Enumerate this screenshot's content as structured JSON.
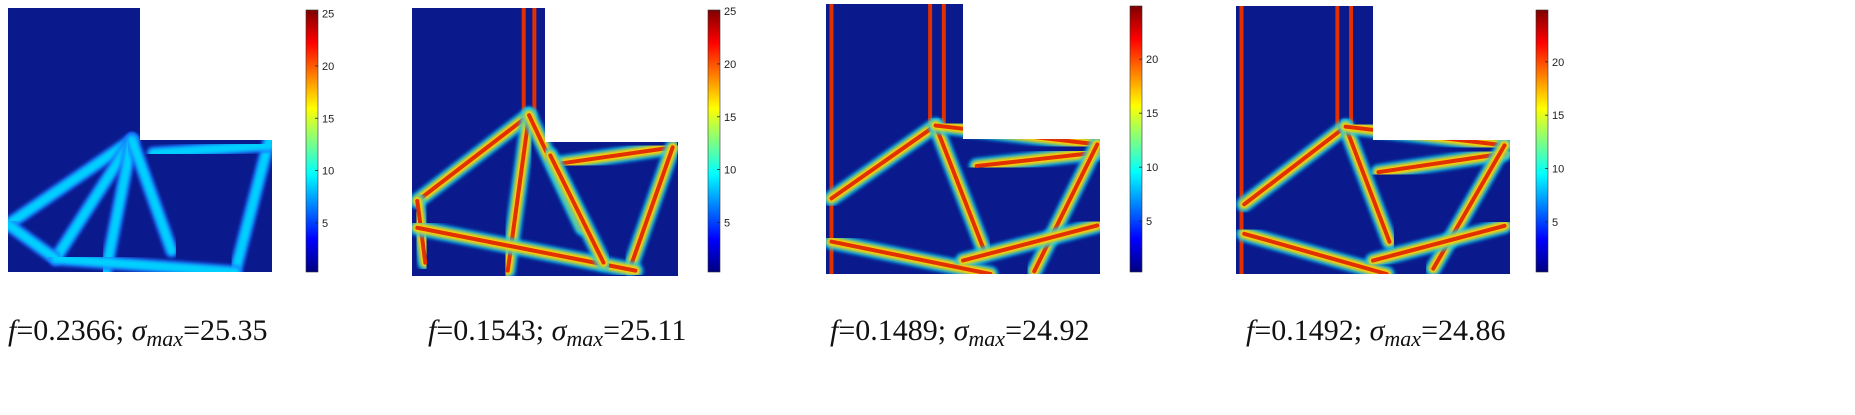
{
  "panels": [
    {
      "variant": "low",
      "colorbar": {
        "ticks": [
          5,
          10,
          15,
          20,
          25
        ],
        "min": 0.3,
        "max": 25.35
      },
      "caption": {
        "f_sym": "f",
        "f_val": "=0.2366; ",
        "sigma_sym": "σ",
        "sigma_sub": "max",
        "sigma_val": "=25.35"
      }
    },
    {
      "variant": "mid",
      "colorbar": {
        "ticks": [
          5,
          10,
          15,
          20,
          25
        ],
        "min": 0.3,
        "max": 25.11
      },
      "caption": {
        "f_sym": "f",
        "f_val": "=0.1543; ",
        "sigma_sym": "σ",
        "sigma_sub": "max",
        "sigma_val": "=25.11"
      }
    },
    {
      "variant": "high",
      "colorbar": {
        "ticks": [
          5,
          10,
          15,
          20
        ],
        "min": 0.3,
        "max": 24.92
      },
      "caption": {
        "f_sym": "f",
        "f_val": "=0.1489; ",
        "sigma_sym": "σ",
        "sigma_sub": "max",
        "sigma_val": "=24.92"
      }
    },
    {
      "variant": "high2",
      "colorbar": {
        "ticks": [
          5,
          10,
          15,
          20
        ],
        "min": 0.3,
        "max": 24.86
      },
      "caption": {
        "f_sym": "f",
        "f_val": "=0.1492; ",
        "sigma_sym": "σ",
        "sigma_sub": "max",
        "sigma_val": "=24.86"
      }
    }
  ],
  "colors": {
    "background_field": "#0a1a8c",
    "jet": [
      "#00007f",
      "#0000ff",
      "#0080ff",
      "#00ffff",
      "#80ff80",
      "#ffff00",
      "#ff8000",
      "#ff0000",
      "#7f0000"
    ]
  }
}
